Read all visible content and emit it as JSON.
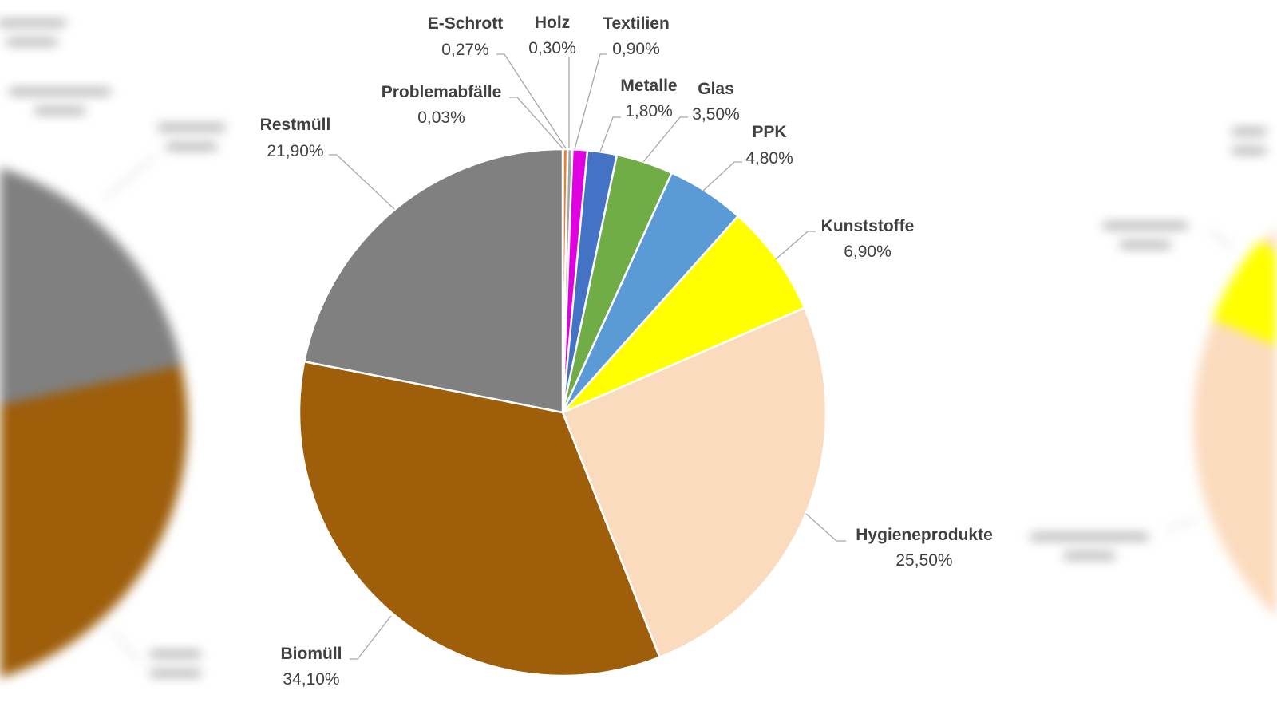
{
  "chart_data": {
    "type": "pie",
    "title": "",
    "unit": "%",
    "start_angle_deg": 0,
    "direction": "clockwise",
    "slices": [
      {
        "label": "Problemabfälle",
        "value": 0.03,
        "display": "0,03%",
        "color": "#ED7D31"
      },
      {
        "label": "E-Schrott",
        "value": 0.27,
        "display": "0,27%",
        "color": "#ED7D31"
      },
      {
        "label": "Holz",
        "value": 0.3,
        "display": "0,30%",
        "color": "#A5A5A5"
      },
      {
        "label": "Textilien",
        "value": 0.9,
        "display": "0,90%",
        "color": "#E000E0"
      },
      {
        "label": "Metalle",
        "value": 1.8,
        "display": "1,80%",
        "color": "#4472C4"
      },
      {
        "label": "Glas",
        "value": 3.5,
        "display": "3,50%",
        "color": "#70AD47"
      },
      {
        "label": "PPK",
        "value": 4.8,
        "display": "4,80%",
        "color": "#5B9BD5"
      },
      {
        "label": "Kunststoffe",
        "value": 6.9,
        "display": "6,90%",
        "color": "#FFFF00"
      },
      {
        "label": "Hygieneprodukte",
        "value": 25.5,
        "display": "25,50%",
        "color": "#FBDBBE"
      },
      {
        "label": "Biomüll",
        "value": 34.1,
        "display": "34,10%",
        "color": "#9E5E0A"
      },
      {
        "label": "Restmüll",
        "value": 21.9,
        "display": "21,90%",
        "color": "#808080"
      }
    ],
    "legend": "none (data labels with leader lines)"
  },
  "labels": {
    "problemabfaelle": {
      "name": "Problemabfälle",
      "value": "0,03%"
    },
    "eschrott": {
      "name": "E-Schrott",
      "value": "0,27%"
    },
    "holz": {
      "name": "Holz",
      "value": "0,30%"
    },
    "textilien": {
      "name": "Textilien",
      "value": "0,90%"
    },
    "metalle": {
      "name": "Metalle",
      "value": "1,80%"
    },
    "glas": {
      "name": "Glas",
      "value": "3,50%"
    },
    "ppk": {
      "name": "PPK",
      "value": "4,80%"
    },
    "kunststoffe": {
      "name": "Kunststoffe",
      "value": "6,90%"
    },
    "hygiene": {
      "name": "Hygieneprodukte",
      "value": "25,50%"
    },
    "biomuell": {
      "name": "Biomüll",
      "value": "34,10%"
    },
    "restmuell": {
      "name": "Restmüll",
      "value": "21,90%"
    }
  }
}
